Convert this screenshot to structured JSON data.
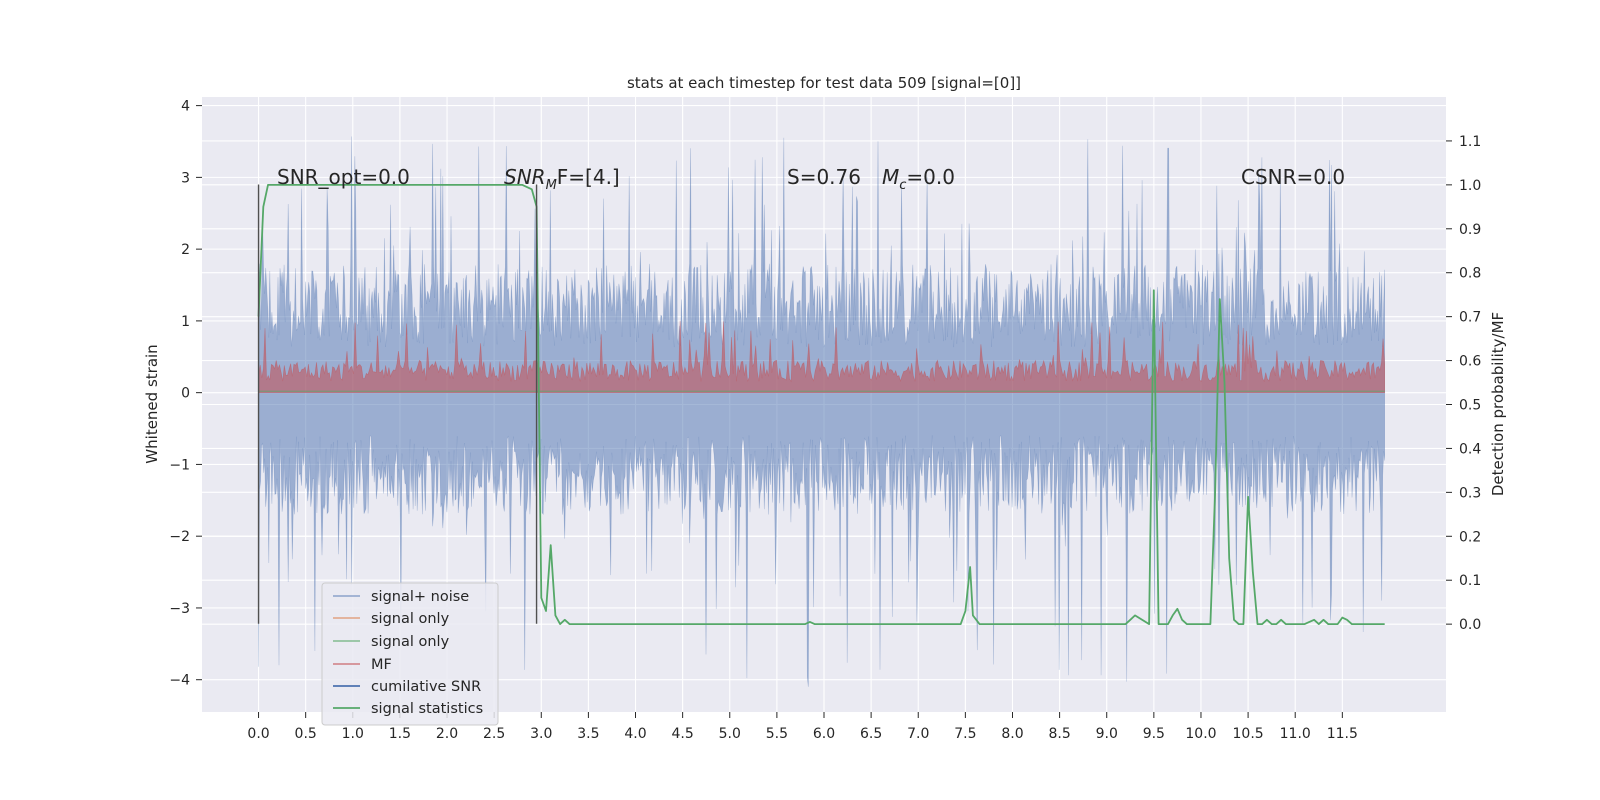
{
  "chart_data": {
    "type": "line",
    "title": "stats at each timestep for test data 509 [signal=[0]]",
    "ylabel": "Whitened strain",
    "ylabel_right": "Detection probability/MF",
    "xlim": [
      -0.6,
      12.6
    ],
    "ylim": [
      -4.45,
      4.12
    ],
    "ylim_right": [
      -0.2,
      1.2
    ],
    "x_ticks": [
      0.0,
      0.5,
      1.0,
      1.5,
      2.0,
      2.5,
      3.0,
      3.5,
      4.0,
      4.5,
      5.0,
      5.5,
      6.0,
      6.5,
      7.0,
      7.5,
      8.0,
      8.5,
      9.0,
      9.5,
      10.0,
      10.5,
      11.0,
      11.5
    ],
    "x_tick_labels": [
      "0.0",
      "0.5",
      "1.0",
      "1.5",
      "2.0",
      "2.5",
      "3.0",
      "3.5",
      "4.0",
      "4.5",
      "5.0",
      "5.5",
      "6.0",
      "6.5",
      "7.0",
      "7.5",
      "8.0",
      "8.5",
      "9.0",
      "9.5",
      "10.0",
      "10.5",
      "11.0",
      "11.5"
    ],
    "y_ticks": [
      4,
      3,
      2,
      1,
      0,
      -1,
      -2,
      -3,
      -4
    ],
    "y_tick_labels": [
      "4",
      "3",
      "2",
      "1",
      "0",
      "−1",
      "−2",
      "−3",
      "−4"
    ],
    "y_right_ticks": [
      1.1,
      1.0,
      0.9,
      0.8,
      0.7,
      0.6,
      0.5,
      0.4,
      0.3,
      0.2,
      0.1,
      0.0
    ],
    "y_right_tick_labels": [
      "1.1",
      "1.0",
      "0.9",
      "0.8",
      "0.7",
      "0.6",
      "0.5",
      "0.4",
      "0.3",
      "0.2",
      "0.1",
      "0.0"
    ],
    "grid": true,
    "annotations": [
      {
        "id": "snr-opt",
        "text": "SNR_opt=0.0"
      },
      {
        "id": "snr-mf",
        "text": "SNR",
        "sub": "M",
        "rest": "F=[4.]"
      },
      {
        "id": "s-stat",
        "text": "S=0.76"
      },
      {
        "id": "mc",
        "text": "M",
        "sub": "c",
        "rest": "=0.0"
      },
      {
        "id": "csnr",
        "text": "CSNR=0.0"
      }
    ],
    "noise_band": {
      "t_start": 0.0,
      "t_end": 11.95,
      "upper_typical": 1.8,
      "upper_peak": 3.6,
      "lower_typical": -1.7,
      "lower_peak": -4.1
    },
    "mf_band": {
      "t_start": 0.0,
      "t_end": 11.95,
      "base": 0.0,
      "typical": 0.45,
      "peak": 1.0
    },
    "vertical_markers": [
      {
        "x": 0.0,
        "y_top": 2.9,
        "y_bottom": -3.22
      },
      {
        "x": 2.95,
        "y_top": 2.9,
        "y_bottom": -3.22
      }
    ],
    "series": [
      {
        "name": "signal+ noise",
        "color": "#4c72b0",
        "style": "dense noise trace (alpha 0.5)"
      },
      {
        "name": "signal only",
        "color": "#dd8452"
      },
      {
        "name": "signal only",
        "color": "#55a868",
        "alpha": 0.7
      },
      {
        "name": "MF",
        "color": "#c44e52"
      },
      {
        "name": "cumilative SNR",
        "color": "#4c72b0"
      },
      {
        "name": "signal statistics",
        "color": "#55a868",
        "axis": "right",
        "x": [
          0.0,
          0.05,
          0.1,
          0.2,
          0.4,
          1.0,
          2.0,
          2.6,
          2.8,
          2.9,
          2.95,
          3.0,
          3.05,
          3.1,
          3.15,
          3.2,
          3.25,
          3.3,
          3.35,
          3.4,
          3.6,
          4.0,
          5.0,
          5.8,
          5.85,
          5.9,
          6.0,
          7.0,
          7.45,
          7.5,
          7.55,
          7.58,
          7.65,
          7.9,
          8.0,
          8.6,
          8.7,
          9.0,
          9.2,
          9.25,
          9.3,
          9.45,
          9.5,
          9.55,
          9.65,
          9.7,
          9.75,
          9.8,
          9.85,
          10.0,
          10.1,
          10.15,
          10.2,
          10.25,
          10.3,
          10.35,
          10.4,
          10.45,
          10.5,
          10.55,
          10.6,
          10.65,
          10.7,
          10.75,
          10.8,
          10.85,
          10.9,
          11.0,
          11.1,
          11.2,
          11.25,
          11.3,
          11.35,
          11.45,
          11.5,
          11.55,
          11.6,
          11.7,
          11.75,
          11.85,
          11.95
        ],
        "y": [
          0.7,
          0.95,
          1.0,
          1.0,
          1.0,
          1.0,
          1.0,
          1.0,
          1.0,
          0.99,
          0.95,
          0.06,
          0.03,
          0.18,
          0.02,
          0.0,
          0.01,
          0.0,
          0.0,
          0.0,
          0.0,
          0.0,
          0.0,
          0.0,
          0.005,
          0.0,
          0.0,
          0.0,
          0.0,
          0.03,
          0.13,
          0.02,
          0.0,
          0.0,
          0.0,
          0.0,
          0.0,
          0.0,
          0.0,
          0.01,
          0.02,
          0.0,
          0.76,
          0.0,
          0.0,
          0.02,
          0.035,
          0.01,
          0.0,
          0.0,
          0.0,
          0.3,
          0.74,
          0.55,
          0.15,
          0.01,
          0.0,
          0.0,
          0.29,
          0.12,
          0.0,
          0.0,
          0.01,
          0.0,
          0.0,
          0.01,
          0.0,
          0.0,
          0.0,
          0.01,
          0.0,
          0.01,
          0.0,
          0.0,
          0.015,
          0.01,
          0.0,
          0.0,
          0.0,
          0.0,
          0.0
        ]
      }
    ],
    "legend": {
      "placement": "lower-left",
      "entries": [
        {
          "label": "signal+ noise",
          "color": "#4c72b0",
          "alpha": 0.6
        },
        {
          "label": "signal only",
          "color": "#dd8452",
          "alpha": 0.7
        },
        {
          "label": "signal only",
          "color": "#55a868",
          "alpha": 0.7
        },
        {
          "label": "MF",
          "color": "#c44e52",
          "alpha": 0.7
        },
        {
          "label": "cumilative SNR",
          "color": "#4c72b0",
          "alpha": 1.0
        },
        {
          "label": "signal statistics",
          "color": "#55a868",
          "alpha": 1.0
        }
      ]
    }
  },
  "colors": {
    "axes_background": "#eaeaf2",
    "grid": "#ffffff",
    "text": "#262626",
    "noise": "#4c72b0",
    "mf": "#c44e52",
    "detection": "#55a868",
    "marker_line": "#505050"
  }
}
